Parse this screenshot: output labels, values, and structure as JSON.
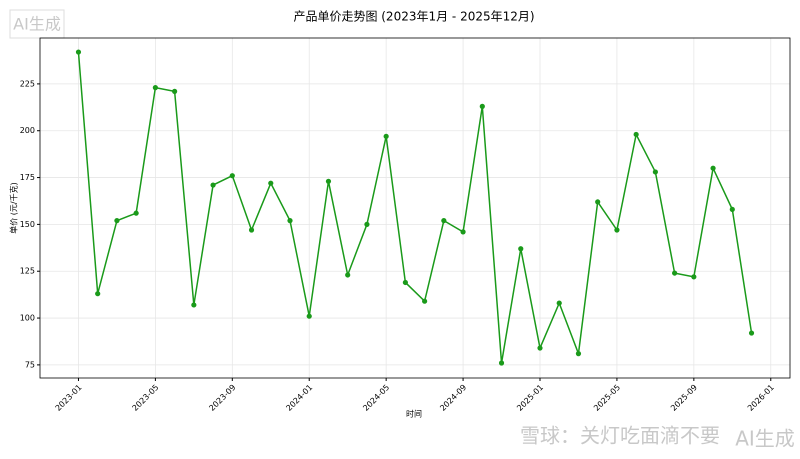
{
  "chart_data": {
    "type": "line",
    "title": "产品单价走势图 (2023年1月 - 2025年12月)",
    "xlabel": "时间",
    "ylabel": "单价 (元/千克)",
    "x": [
      "2023-01",
      "2023-02",
      "2023-03",
      "2023-04",
      "2023-05",
      "2023-06",
      "2023-07",
      "2023-08",
      "2023-09",
      "2023-10",
      "2023-11",
      "2023-12",
      "2024-01",
      "2024-02",
      "2024-03",
      "2024-04",
      "2024-05",
      "2024-06",
      "2024-07",
      "2024-08",
      "2024-09",
      "2024-10",
      "2024-11",
      "2024-12",
      "2025-01",
      "2025-02",
      "2025-03",
      "2025-04",
      "2025-05",
      "2025-06",
      "2025-07",
      "2025-08",
      "2025-09",
      "2025-10",
      "2025-11",
      "2025-12"
    ],
    "series": [
      {
        "name": "单价",
        "color": "#1a9a1a",
        "values": [
          242,
          113,
          152,
          156,
          223,
          221,
          107,
          171,
          176,
          147,
          172,
          152,
          101,
          173,
          123,
          150,
          197,
          119,
          109,
          152,
          146,
          213,
          76,
          137,
          84,
          108,
          81,
          162,
          147,
          198,
          178,
          124,
          122,
          180,
          158,
          92
        ]
      }
    ],
    "xlim": [
      "2022-11",
      "2026-02"
    ],
    "xticks": [
      "2023-01",
      "2023-05",
      "2023-09",
      "2024-01",
      "2024-05",
      "2024-09",
      "2025-01",
      "2025-05",
      "2025-09",
      "2026-01"
    ],
    "ylim": [
      68,
      249.5
    ],
    "yticks": [
      75,
      100,
      125,
      150,
      175,
      200,
      225
    ],
    "grid": true,
    "watermarks": [
      "AI生成",
      "雪球：关灯吃面滴不要",
      "AI生成"
    ]
  }
}
